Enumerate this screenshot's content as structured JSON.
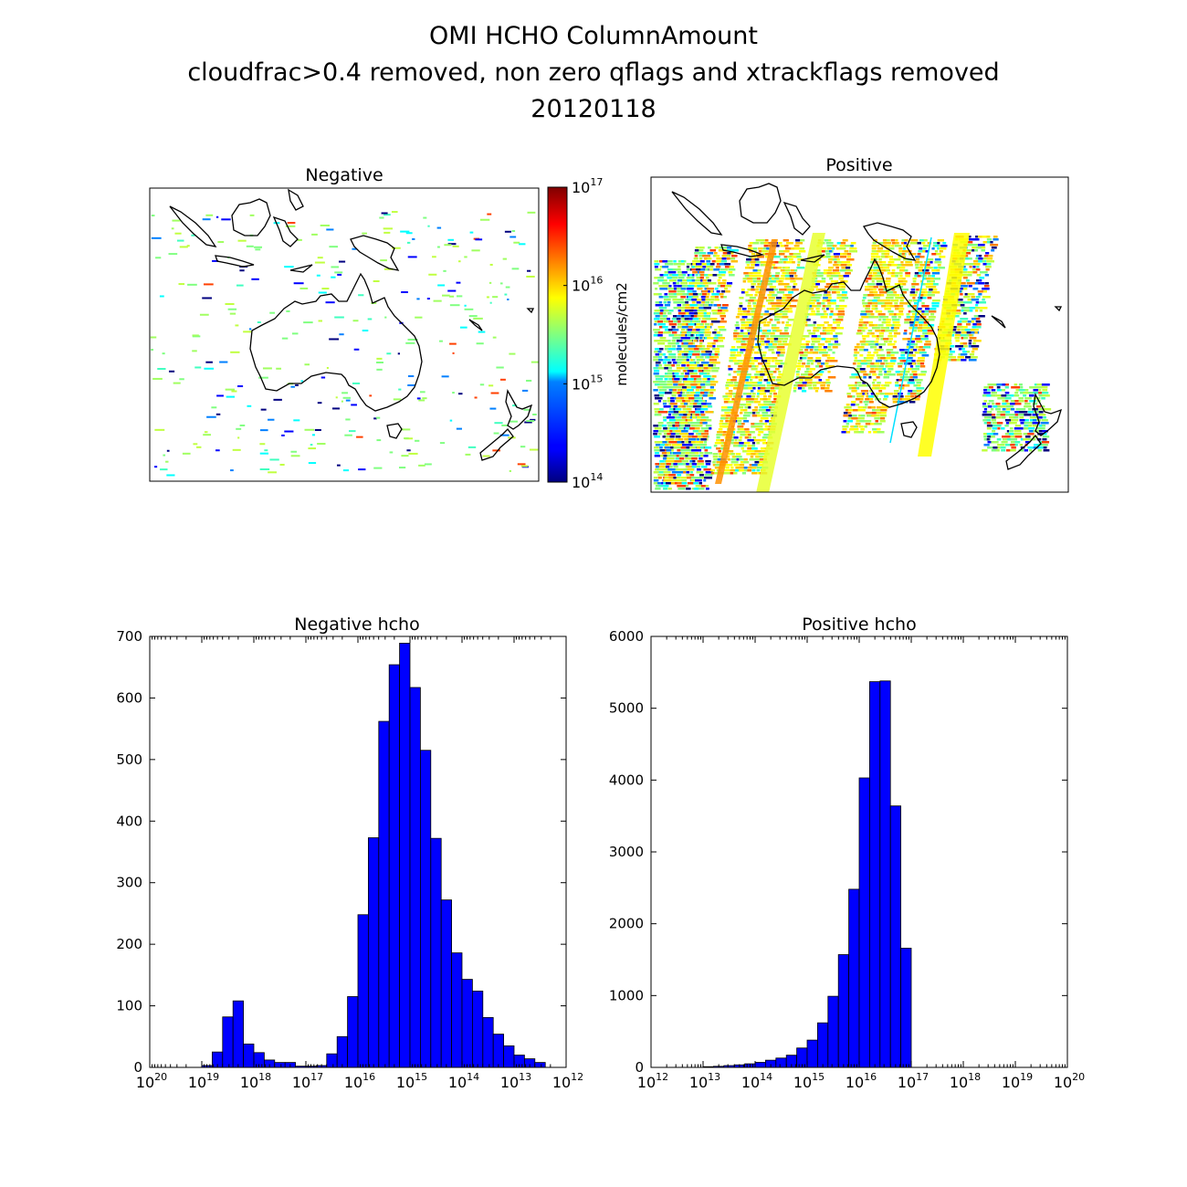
{
  "figure": {
    "title_lines": [
      "OMI HCHO ColumnAmount",
      "cloudfrac>0.4 removed, non zero qflags and xtrackflags removed",
      "20120118"
    ]
  },
  "maps": {
    "negative_title": "Negative",
    "positive_title": "Positive"
  },
  "colorbar": {
    "label": "molecules/cm2",
    "scale": "log",
    "colormap": "jet",
    "ticks": [
      {
        "base": "10",
        "exp": "17"
      },
      {
        "base": "10",
        "exp": "16"
      },
      {
        "base": "10",
        "exp": "15"
      },
      {
        "base": "10",
        "exp": "14"
      }
    ]
  },
  "chart_data": [
    {
      "type": "bar",
      "title": "Negative hcho",
      "xscale": "log",
      "x_inverted": true,
      "xlim": [
        1e+20,
        1000000000000.0
      ],
      "ylim": [
        0,
        700
      ],
      "yticks": [
        0,
        100,
        200,
        300,
        400,
        500,
        600,
        700
      ],
      "xtick_exponents": [
        "20",
        "19",
        "18",
        "17",
        "16",
        "15",
        "14",
        "13",
        "12"
      ],
      "bar_color": "#0000ff",
      "bins_log10_right_edges": [
        18.8,
        18.6,
        18.4,
        18.2,
        18.0,
        17.8,
        17.6,
        17.4,
        17.2,
        17.0,
        16.8,
        16.6,
        16.4,
        16.2,
        16.0,
        15.8,
        15.6,
        15.4,
        15.2,
        15.0,
        14.8,
        14.6,
        14.4,
        14.2,
        14.0,
        13.8,
        13.6,
        13.4,
        13.2,
        13.0,
        12.8,
        12.6,
        12.4
      ],
      "values": [
        3,
        25,
        82,
        108,
        38,
        24,
        12,
        8,
        8,
        2,
        2,
        3,
        22,
        50,
        115,
        248,
        373,
        562,
        654,
        689,
        617,
        515,
        372,
        272,
        186,
        143,
        124,
        81,
        54,
        35,
        20,
        14,
        8
      ]
    },
    {
      "type": "bar",
      "title": "Positive hcho",
      "xscale": "log",
      "xlim": [
        1000000000000.0,
        1e+20
      ],
      "ylim": [
        0,
        6000
      ],
      "yticks": [
        0,
        1000,
        2000,
        3000,
        4000,
        5000,
        6000
      ],
      "xtick_exponents": [
        "12",
        "13",
        "14",
        "15",
        "16",
        "17",
        "18",
        "19",
        "20"
      ],
      "bar_color": "#0000ff",
      "bins_log10_left_edges": [
        13.0,
        13.2,
        13.4,
        13.6,
        13.8,
        14.0,
        14.2,
        14.4,
        14.6,
        14.8,
        15.0,
        15.2,
        15.4,
        15.6,
        15.8,
        16.0,
        16.2,
        16.4,
        16.6,
        16.8
      ],
      "values": [
        10,
        15,
        25,
        35,
        50,
        70,
        100,
        130,
        170,
        270,
        380,
        620,
        990,
        1570,
        2480,
        4030,
        5370,
        5380,
        3640,
        1660
      ]
    }
  ]
}
